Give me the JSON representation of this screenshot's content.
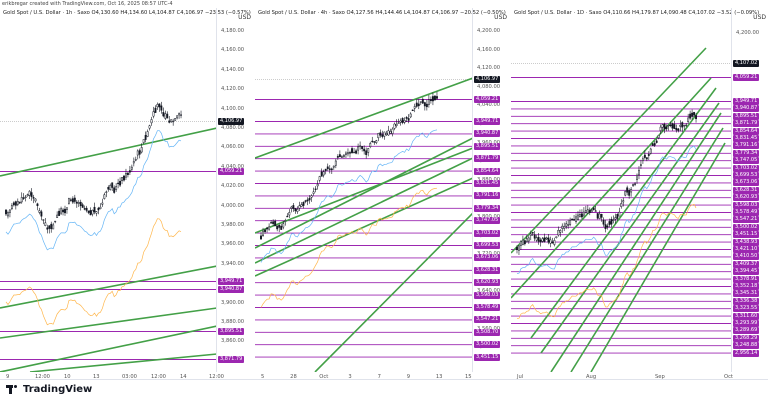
{
  "header": {
    "created_by": "erikbregar created with TradingView.com, Oct 16, 2025 08:57 UTC-4"
  },
  "panes": [
    {
      "title": "Gold Spot / U.S. Dollar · 1h · Saxo  O4,130.60  H4,134.60  L4,104.87  C4,106.97  −23.53 (−0.57%)",
      "currency": "USD",
      "price_ticks": [
        "4,180.00",
        "4,160.00",
        "4,140.00",
        "4,120.00",
        "4,100.00",
        "4,080.00",
        "4,060.00",
        "4,040.00",
        "4,020.00",
        "4,000.00",
        "3,980.00",
        "3,960.00",
        "3,940.00",
        "3,920.00",
        "3,900.00",
        "3,880.00",
        "3,860.00"
      ],
      "tags": [
        {
          "label": "4,106.97",
          "last": true
        },
        {
          "label": "4,059.21"
        },
        {
          "label": "3,949.71"
        },
        {
          "label": "3,940.87"
        },
        {
          "label": "3,895.51"
        },
        {
          "label": "3,871.79"
        }
      ],
      "time_ticks": [
        "9",
        "12:00",
        "10",
        "13",
        "03:00",
        "12:00",
        "14",
        "12:00"
      ]
    },
    {
      "title": "Gold Spot / U.S. Dollar · 4h · Saxo  O4,127.56  H4,144.46  L4,104.87  C4,106.97  −20.52 (−0.50%)",
      "currency": "USD",
      "price_ticks": [
        "4,200.00",
        "4,160.00",
        "4,120.00",
        "4,080.00",
        "4,040.00",
        "4,000.00",
        "3,960.00",
        "3,920.00",
        "3,880.00",
        "3,840.00",
        "3,800.00",
        "3,760.00",
        "3,720.00",
        "3,680.00",
        "3,640.00",
        "3,600.00",
        "3,560.00",
        "3,520.00"
      ],
      "tags": [
        {
          "label": "4,106.97",
          "last": true
        },
        {
          "label": "4,059.21"
        },
        {
          "label": "3,949.71"
        },
        {
          "label": "3,940.87"
        },
        {
          "label": "3,895.51"
        },
        {
          "label": "3,871.79"
        },
        {
          "label": "3,854.64"
        },
        {
          "label": "3,831.45"
        },
        {
          "label": "3,791.16"
        },
        {
          "label": "3,779.34"
        },
        {
          "label": "3,747.05"
        },
        {
          "label": "3,703.02"
        },
        {
          "label": "3,699.53"
        },
        {
          "label": "3,673.06"
        },
        {
          "label": "3,628.31"
        },
        {
          "label": "3,620.93"
        },
        {
          "label": "3,598.03"
        },
        {
          "label": "3,578.49"
        },
        {
          "label": "3,547.21"
        },
        {
          "label": "3,508.70"
        },
        {
          "label": "3,500.02"
        },
        {
          "label": "3,451.15"
        }
      ],
      "time_ticks": [
        "5",
        "28",
        "Oct",
        "3",
        "7",
        "9",
        "13",
        "15"
      ]
    },
    {
      "title": "Gold Spot / U.S. Dollar · 1D · Saxo  O4,110.66  H4,179.87  L4,090.48  C4,107.02  −3.52 (−0.09%)",
      "currency": "USD",
      "price_ticks": [
        "4,200.00",
        "4,000.00",
        "3,800.00",
        "3,600.00",
        "3,400.00",
        "3,200.00",
        "3,000.00",
        "2,800.00"
      ],
      "tags": [
        {
          "label": "4,107.02",
          "last": true
        },
        {
          "label": "4,059.21"
        },
        {
          "label": "3,949.71"
        },
        {
          "label": "3,940.87"
        },
        {
          "label": "3,895.51"
        },
        {
          "label": "3,871.79"
        },
        {
          "label": "3,854.64"
        },
        {
          "label": "3,831.45"
        },
        {
          "label": "3,791.16"
        },
        {
          "label": "3,779.34"
        },
        {
          "label": "3,747.05"
        },
        {
          "label": "3,703.02"
        },
        {
          "label": "3,699.53"
        },
        {
          "label": "3,673.06"
        },
        {
          "label": "3,628.31"
        },
        {
          "label": "3,620.93"
        },
        {
          "label": "3,598.03"
        },
        {
          "label": "3,578.49"
        },
        {
          "label": "3,547.21"
        },
        {
          "label": "3,500.02"
        },
        {
          "label": "3,451.15"
        },
        {
          "label": "3,438.93"
        },
        {
          "label": "3,421.10"
        },
        {
          "label": "3,410.50"
        },
        {
          "label": "3,409.37"
        },
        {
          "label": "3,394.45"
        },
        {
          "label": "3,378.91"
        },
        {
          "label": "3,352.18"
        },
        {
          "label": "3,345.31"
        },
        {
          "label": "3,336.38"
        },
        {
          "label": "3,323.55"
        },
        {
          "label": "3,311.60"
        },
        {
          "label": "3,293.99"
        },
        {
          "label": "3,289.69"
        },
        {
          "label": "3,268.29"
        },
        {
          "label": "3,248.88"
        },
        {
          "label": "2,956.14"
        }
      ],
      "time_ticks": [
        "Jul",
        "Aug",
        "Sep",
        "Oct"
      ]
    }
  ],
  "footer": {
    "brand": "TradingView"
  },
  "colors": {
    "bull": "#131722",
    "trend": "#43a047",
    "level": "#9c27b0",
    "ma_blue": "#64b5f6",
    "ma_orange": "#ffb74d",
    "last": "#131722"
  }
}
